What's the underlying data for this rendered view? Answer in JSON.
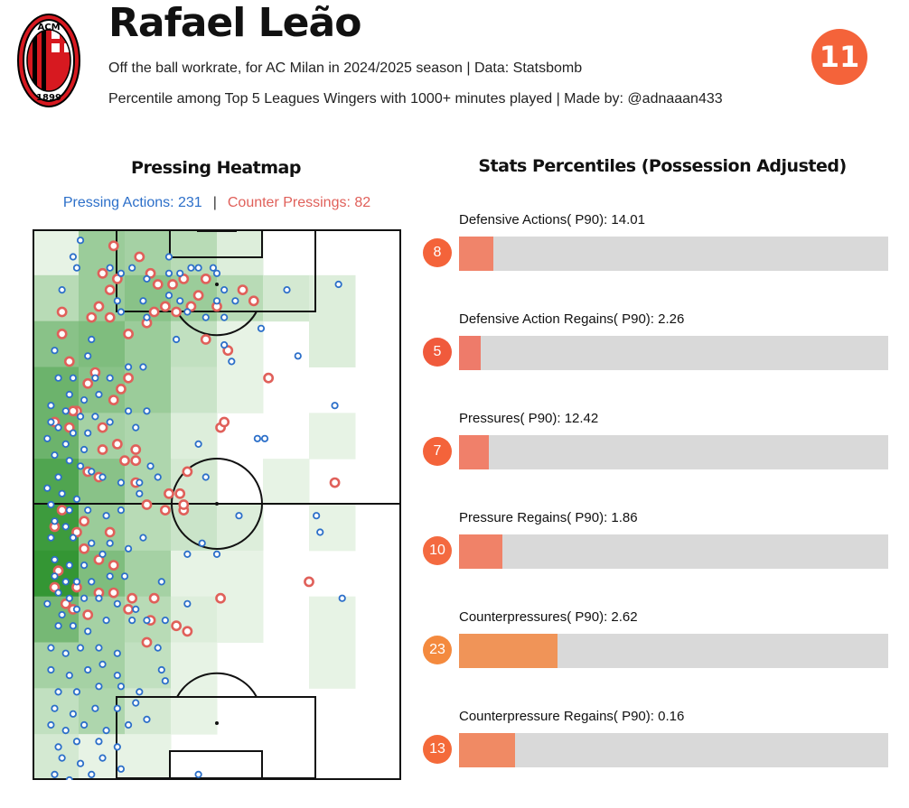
{
  "header": {
    "player_name": "Rafael Leão",
    "subtitle_1": "Off the ball workrate, for AC Milan in 2024/2025 season | Data: Statsbomb",
    "subtitle_2": "Percentile among Top 5 Leagues Wingers with 1000+ minutes played | Made by: @adnaaan433",
    "shirt_number": "11",
    "badge_color": "#f4633a"
  },
  "logo": {
    "text_top": "ACM",
    "text_bottom": "1899",
    "colors": [
      "#d71920",
      "#000000",
      "#ffffff"
    ]
  },
  "heatmap": {
    "title": "Pressing Heatmap",
    "pressing_label": "Pressing Actions: 231",
    "separator": "|",
    "counter_label": "Counter Pressings: 82",
    "pressing_color": "#2c6fc9",
    "counter_color": "#e0605a"
  },
  "stats": {
    "title": "Stats Percentiles (Possession Adjusted)"
  },
  "chart_data": [
    {
      "type": "heatmap",
      "title": "Pressing Heatmap",
      "grid_cols": 8,
      "grid_rows": 12,
      "cells": [
        [
          0.05,
          0.45,
          0.4,
          0.3,
          0.1,
          0.0,
          0.0,
          0.0
        ],
        [
          0.3,
          0.45,
          0.55,
          0.45,
          0.3,
          0.15,
          0.1,
          0.0
        ],
        [
          0.55,
          0.6,
          0.45,
          0.25,
          0.05,
          0.0,
          0.1,
          0.0
        ],
        [
          0.7,
          0.55,
          0.45,
          0.2,
          0.05,
          0.0,
          0.0,
          0.0
        ],
        [
          0.7,
          0.4,
          0.35,
          0.1,
          0.0,
          0.0,
          0.05,
          0.0
        ],
        [
          0.85,
          0.55,
          0.35,
          0.15,
          0.0,
          0.05,
          0.0,
          0.0
        ],
        [
          0.95,
          0.45,
          0.3,
          0.2,
          0.1,
          0.0,
          0.05,
          0.0
        ],
        [
          1.0,
          0.6,
          0.4,
          0.05,
          0.05,
          0.0,
          0.0,
          0.0
        ],
        [
          0.65,
          0.4,
          0.3,
          0.1,
          0.05,
          0.0,
          0.05,
          0.0
        ],
        [
          0.4,
          0.4,
          0.25,
          0.05,
          0.0,
          0.0,
          0.05,
          0.0
        ],
        [
          0.25,
          0.35,
          0.15,
          0.05,
          0.0,
          0.0,
          0.0,
          0.0
        ],
        [
          0.15,
          0.05,
          0.05,
          0.0,
          0.0,
          0.0,
          0.0,
          0.0
        ]
      ],
      "pressing_points": [
        [
          0.13,
          0.02
        ],
        [
          0.11,
          0.05
        ],
        [
          0.12,
          0.07
        ],
        [
          0.08,
          0.11
        ],
        [
          0.21,
          0.07
        ],
        [
          0.24,
          0.08
        ],
        [
          0.27,
          0.07
        ],
        [
          0.31,
          0.09
        ],
        [
          0.37,
          0.08
        ],
        [
          0.37,
          0.05
        ],
        [
          0.4,
          0.08
        ],
        [
          0.43,
          0.07
        ],
        [
          0.45,
          0.07
        ],
        [
          0.49,
          0.07
        ],
        [
          0.5,
          0.08
        ],
        [
          0.52,
          0.11
        ],
        [
          0.55,
          0.13
        ],
        [
          0.23,
          0.13
        ],
        [
          0.24,
          0.15
        ],
        [
          0.3,
          0.13
        ],
        [
          0.31,
          0.16
        ],
        [
          0.37,
          0.12
        ],
        [
          0.4,
          0.13
        ],
        [
          0.42,
          0.15
        ],
        [
          0.5,
          0.13
        ],
        [
          0.47,
          0.16
        ],
        [
          0.39,
          0.2
        ],
        [
          0.52,
          0.16
        ],
        [
          0.69,
          0.11
        ],
        [
          0.83,
          0.1
        ],
        [
          0.16,
          0.2
        ],
        [
          0.15,
          0.23
        ],
        [
          0.06,
          0.22
        ],
        [
          0.17,
          0.27
        ],
        [
          0.21,
          0.27
        ],
        [
          0.07,
          0.27
        ],
        [
          0.11,
          0.27
        ],
        [
          0.26,
          0.25
        ],
        [
          0.3,
          0.25
        ],
        [
          0.18,
          0.3
        ],
        [
          0.14,
          0.31
        ],
        [
          0.1,
          0.3
        ],
        [
          0.05,
          0.32
        ],
        [
          0.09,
          0.33
        ],
        [
          0.05,
          0.35
        ],
        [
          0.13,
          0.34
        ],
        [
          0.17,
          0.34
        ],
        [
          0.21,
          0.35
        ],
        [
          0.26,
          0.33
        ],
        [
          0.31,
          0.33
        ],
        [
          0.28,
          0.36
        ],
        [
          0.07,
          0.36
        ],
        [
          0.11,
          0.37
        ],
        [
          0.15,
          0.37
        ],
        [
          0.04,
          0.38
        ],
        [
          0.09,
          0.39
        ],
        [
          0.14,
          0.4
        ],
        [
          0.06,
          0.41
        ],
        [
          0.1,
          0.42
        ],
        [
          0.13,
          0.43
        ],
        [
          0.16,
          0.44
        ],
        [
          0.19,
          0.45
        ],
        [
          0.24,
          0.46
        ],
        [
          0.29,
          0.46
        ],
        [
          0.32,
          0.43
        ],
        [
          0.07,
          0.45
        ],
        [
          0.04,
          0.47
        ],
        [
          0.08,
          0.48
        ],
        [
          0.12,
          0.49
        ],
        [
          0.05,
          0.5
        ],
        [
          0.1,
          0.51
        ],
        [
          0.15,
          0.51
        ],
        [
          0.2,
          0.52
        ],
        [
          0.24,
          0.51
        ],
        [
          0.29,
          0.48
        ],
        [
          0.34,
          0.45
        ],
        [
          0.06,
          0.53
        ],
        [
          0.09,
          0.54
        ],
        [
          0.05,
          0.56
        ],
        [
          0.11,
          0.56
        ],
        [
          0.16,
          0.57
        ],
        [
          0.21,
          0.57
        ],
        [
          0.26,
          0.58
        ],
        [
          0.3,
          0.56
        ],
        [
          0.06,
          0.6
        ],
        [
          0.1,
          0.61
        ],
        [
          0.14,
          0.61
        ],
        [
          0.19,
          0.59
        ],
        [
          0.47,
          0.45
        ],
        [
          0.45,
          0.39
        ],
        [
          0.61,
          0.38
        ],
        [
          0.63,
          0.38
        ],
        [
          0.72,
          0.23
        ],
        [
          0.54,
          0.24
        ],
        [
          0.52,
          0.21
        ],
        [
          0.82,
          0.32
        ],
        [
          0.06,
          0.63
        ],
        [
          0.09,
          0.64
        ],
        [
          0.12,
          0.64
        ],
        [
          0.16,
          0.64
        ],
        [
          0.21,
          0.63
        ],
        [
          0.25,
          0.63
        ],
        [
          0.07,
          0.66
        ],
        [
          0.1,
          0.67
        ],
        [
          0.14,
          0.67
        ],
        [
          0.18,
          0.67
        ],
        [
          0.04,
          0.68
        ],
        [
          0.08,
          0.7
        ],
        [
          0.12,
          0.69
        ],
        [
          0.23,
          0.68
        ],
        [
          0.28,
          0.69
        ],
        [
          0.07,
          0.72
        ],
        [
          0.11,
          0.72
        ],
        [
          0.15,
          0.73
        ],
        [
          0.2,
          0.71
        ],
        [
          0.27,
          0.71
        ],
        [
          0.31,
          0.71
        ],
        [
          0.36,
          0.71
        ],
        [
          0.42,
          0.59
        ],
        [
          0.46,
          0.57
        ],
        [
          0.5,
          0.59
        ],
        [
          0.56,
          0.52
        ],
        [
          0.77,
          0.52
        ],
        [
          0.78,
          0.55
        ],
        [
          0.84,
          0.67
        ],
        [
          0.05,
          0.76
        ],
        [
          0.09,
          0.77
        ],
        [
          0.13,
          0.76
        ],
        [
          0.18,
          0.76
        ],
        [
          0.23,
          0.77
        ],
        [
          0.34,
          0.76
        ],
        [
          0.05,
          0.8
        ],
        [
          0.1,
          0.81
        ],
        [
          0.15,
          0.8
        ],
        [
          0.19,
          0.79
        ],
        [
          0.23,
          0.81
        ],
        [
          0.35,
          0.8
        ],
        [
          0.07,
          0.84
        ],
        [
          0.12,
          0.84
        ],
        [
          0.18,
          0.83
        ],
        [
          0.24,
          0.83
        ],
        [
          0.29,
          0.84
        ],
        [
          0.36,
          0.82
        ],
        [
          0.06,
          0.87
        ],
        [
          0.11,
          0.88
        ],
        [
          0.17,
          0.87
        ],
        [
          0.23,
          0.87
        ],
        [
          0.28,
          0.86
        ],
        [
          0.05,
          0.9
        ],
        [
          0.09,
          0.91
        ],
        [
          0.14,
          0.9
        ],
        [
          0.2,
          0.91
        ],
        [
          0.26,
          0.9
        ],
        [
          0.31,
          0.89
        ],
        [
          0.07,
          0.94
        ],
        [
          0.12,
          0.93
        ],
        [
          0.18,
          0.93
        ],
        [
          0.23,
          0.94
        ],
        [
          0.08,
          0.96
        ],
        [
          0.13,
          0.97
        ],
        [
          0.19,
          0.96
        ],
        [
          0.24,
          0.98
        ],
        [
          0.06,
          0.99
        ],
        [
          0.1,
          1.0
        ],
        [
          0.16,
          0.99
        ],
        [
          0.21,
          1.01
        ],
        [
          0.45,
          0.99
        ],
        [
          0.62,
          0.18
        ],
        [
          0.42,
          0.68
        ],
        [
          0.35,
          0.64
        ]
      ],
      "counter_points": [
        [
          0.22,
          0.03
        ],
        [
          0.19,
          0.08
        ],
        [
          0.23,
          0.09
        ],
        [
          0.21,
          0.11
        ],
        [
          0.18,
          0.14
        ],
        [
          0.29,
          0.05
        ],
        [
          0.32,
          0.08
        ],
        [
          0.34,
          0.1
        ],
        [
          0.38,
          0.1
        ],
        [
          0.36,
          0.14
        ],
        [
          0.43,
          0.14
        ],
        [
          0.45,
          0.12
        ],
        [
          0.5,
          0.14
        ],
        [
          0.57,
          0.11
        ],
        [
          0.6,
          0.13
        ],
        [
          0.47,
          0.09
        ],
        [
          0.41,
          0.09
        ],
        [
          0.08,
          0.15
        ],
        [
          0.16,
          0.16
        ],
        [
          0.21,
          0.16
        ],
        [
          0.26,
          0.19
        ],
        [
          0.31,
          0.17
        ],
        [
          0.33,
          0.15
        ],
        [
          0.39,
          0.15
        ],
        [
          0.47,
          0.2
        ],
        [
          0.53,
          0.22
        ],
        [
          0.26,
          0.27
        ],
        [
          0.24,
          0.29
        ],
        [
          0.22,
          0.31
        ],
        [
          0.12,
          0.33
        ],
        [
          0.17,
          0.26
        ],
        [
          0.08,
          0.19
        ],
        [
          0.1,
          0.24
        ],
        [
          0.15,
          0.28
        ],
        [
          0.1,
          0.36
        ],
        [
          0.19,
          0.36
        ],
        [
          0.23,
          0.39
        ],
        [
          0.28,
          0.4
        ],
        [
          0.28,
          0.42
        ],
        [
          0.31,
          0.5
        ],
        [
          0.36,
          0.51
        ],
        [
          0.41,
          0.51
        ],
        [
          0.06,
          0.54
        ],
        [
          0.12,
          0.55
        ],
        [
          0.14,
          0.58
        ],
        [
          0.18,
          0.6
        ],
        [
          0.22,
          0.61
        ],
        [
          0.07,
          0.62
        ],
        [
          0.12,
          0.65
        ],
        [
          0.18,
          0.66
        ],
        [
          0.22,
          0.66
        ],
        [
          0.27,
          0.67
        ],
        [
          0.33,
          0.67
        ],
        [
          0.42,
          0.44
        ],
        [
          0.4,
          0.48
        ],
        [
          0.41,
          0.5
        ],
        [
          0.51,
          0.36
        ],
        [
          0.52,
          0.35
        ],
        [
          0.64,
          0.27
        ],
        [
          0.82,
          0.46
        ],
        [
          0.06,
          0.65
        ],
        [
          0.09,
          0.68
        ],
        [
          0.11,
          0.69
        ],
        [
          0.15,
          0.7
        ],
        [
          0.26,
          0.69
        ],
        [
          0.39,
          0.72
        ],
        [
          0.31,
          0.75
        ],
        [
          0.51,
          0.67
        ],
        [
          0.42,
          0.73
        ],
        [
          0.32,
          0.71
        ],
        [
          0.75,
          0.64
        ],
        [
          0.11,
          0.33
        ],
        [
          0.06,
          0.35
        ],
        [
          0.19,
          0.4
        ],
        [
          0.25,
          0.42
        ],
        [
          0.15,
          0.44
        ],
        [
          0.18,
          0.45
        ],
        [
          0.28,
          0.46
        ],
        [
          0.37,
          0.48
        ],
        [
          0.08,
          0.51
        ],
        [
          0.14,
          0.53
        ],
        [
          0.21,
          0.55
        ]
      ]
    },
    {
      "type": "bar",
      "title": "Stats Percentiles (Possession Adjusted)",
      "xlim": [
        0,
        100
      ],
      "items": [
        {
          "label": "Defensive Actions( P90): 14.01",
          "percentile": 8,
          "color": "#f0846a",
          "circle_color": "#f4633a"
        },
        {
          "label": "Defensive Action Regains( P90): 2.26",
          "percentile": 5,
          "color": "#ee7b6a",
          "circle_color": "#f05a3c"
        },
        {
          "label": "Pressures( P90): 12.42",
          "percentile": 7,
          "color": "#f0806a",
          "circle_color": "#f4633a"
        },
        {
          "label": "Pressure Regains( P90): 1.86",
          "percentile": 10,
          "color": "#f08268",
          "circle_color": "#f46a40"
        },
        {
          "label": "Counterpressures( P90): 2.62",
          "percentile": 23,
          "color": "#f09458",
          "circle_color": "#f48a3e"
        },
        {
          "label": "Counterpressure Regains( P90): 0.16",
          "percentile": 13,
          "color": "#f08a64",
          "circle_color": "#f46a3a"
        }
      ]
    }
  ]
}
